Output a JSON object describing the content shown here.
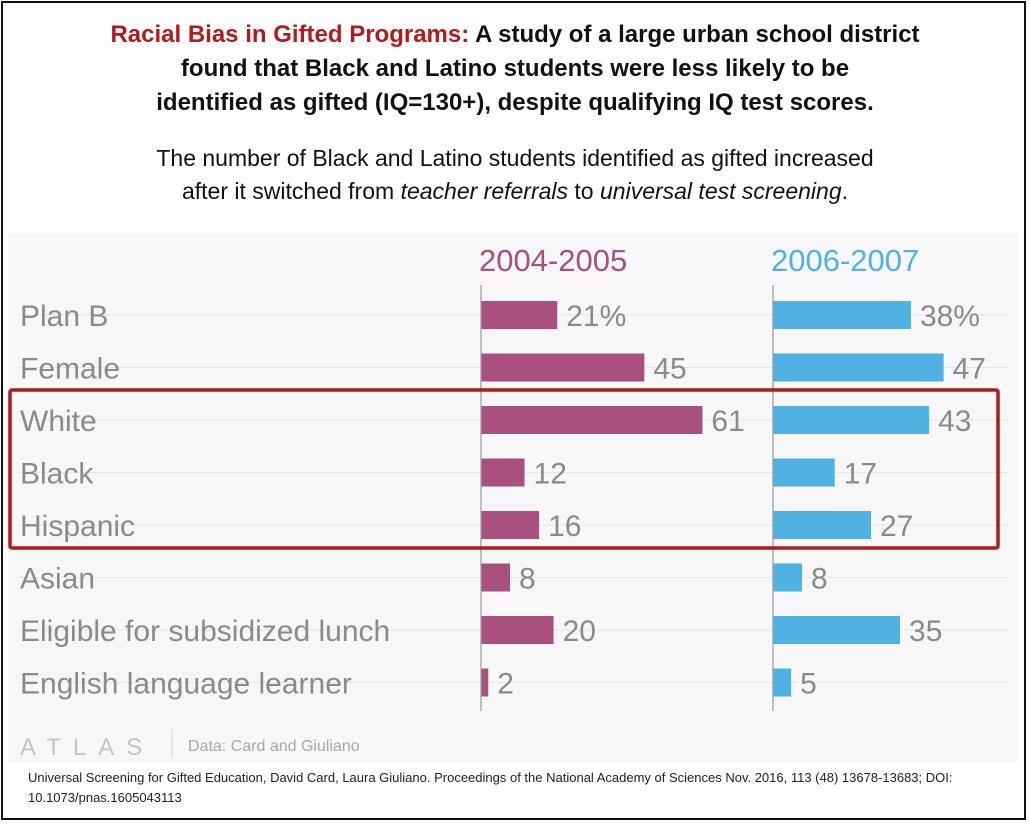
{
  "headline": {
    "red": "Racial Bias in Gifted Programs:",
    "line1": " A study of a large urban school district",
    "line2": "found that Black and Latino students were less likely to be",
    "line3": "identified as gifted (IQ=130+), despite qualifying IQ test scores."
  },
  "subhead": {
    "p1": "The number of Black and Latino students identified as gifted increased",
    "p2": "after it switched from ",
    "em1": "teacher referrals",
    "p3": " to ",
    "em2": "universal test screening",
    "p4": "."
  },
  "chart_data": {
    "type": "bar",
    "orientation": "horizontal",
    "categories": [
      "Plan B",
      "Female",
      "White",
      "Black",
      "Hispanic",
      "Asian",
      "Eligible for subsidized lunch",
      "English language learner"
    ],
    "series": [
      {
        "name": "2004-2005",
        "values": [
          21,
          45,
          61,
          12,
          16,
          8,
          20,
          2
        ],
        "labels": [
          "21%",
          "45",
          "61",
          "12",
          "16",
          "8",
          "20",
          "2"
        ],
        "color": "#a8507e"
      },
      {
        "name": "2006-2007",
        "values": [
          38,
          47,
          43,
          17,
          27,
          8,
          35,
          5
        ],
        "labels": [
          "38%",
          "47",
          "43",
          "17",
          "27",
          "8",
          "35",
          "5"
        ],
        "color": "#4fb2e3"
      }
    ],
    "xlim": [
      0,
      100
    ],
    "highlight": {
      "categories": [
        "White",
        "Black",
        "Hispanic"
      ],
      "color": "#b01c1c"
    },
    "branding": "ATLAS",
    "source": "Data: Card and Giuliano"
  },
  "caption": "Universal Screening for Gifted Education, David Card, Laura Giuliano. Proceedings of the National Academy of Sciences Nov. 2016, 113 (48) 13678-13683; DOI: 10.1073/pnas.1605043113"
}
